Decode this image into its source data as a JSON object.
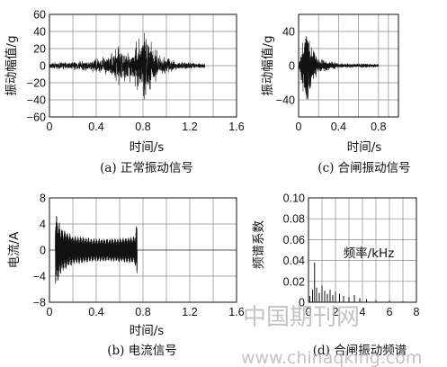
{
  "chart_data": [
    {
      "id": "a",
      "type": "line",
      "caption": "(a) 正常振动信号",
      "xlabel": "时间/s",
      "ylabel": "振动幅值/g",
      "xlim": [
        0,
        1.6
      ],
      "ylim": [
        -60,
        60
      ],
      "xticks": [
        0,
        0.4,
        0.8,
        1.2,
        1.6
      ],
      "xtick_labels": [
        "0",
        "0.4",
        "0.8",
        "1.2",
        "1.6"
      ],
      "yticks": [
        -60,
        -40,
        -20,
        0,
        20,
        40,
        60
      ],
      "ytick_labels": [
        "−60",
        "−40",
        "−20",
        "0",
        "20",
        "40",
        "60"
      ],
      "grid": true,
      "series": [
        {
          "signal": "vibration",
          "x_range": [
            0,
            1.33
          ],
          "envelope": [
            {
              "x": 0.0,
              "amp": 4
            },
            {
              "x": 0.3,
              "amp": 6
            },
            {
              "x": 0.5,
              "amp": 12
            },
            {
              "x": 0.6,
              "amp": 25
            },
            {
              "x": 0.7,
              "amp": 20
            },
            {
              "x": 0.8,
              "amp": 40
            },
            {
              "x": 0.82,
              "amp": 60
            },
            {
              "x": 0.86,
              "amp": 30
            },
            {
              "x": 0.95,
              "amp": 12
            },
            {
              "x": 1.1,
              "amp": 5
            },
            {
              "x": 1.33,
              "amp": 3
            }
          ]
        }
      ]
    },
    {
      "id": "c",
      "type": "line",
      "caption": "(c) 合闸振动信号",
      "xlabel": "时间/s",
      "ylabel": "振动幅值/g",
      "xlim": [
        0,
        1.0
      ],
      "ylim": [
        -60,
        60
      ],
      "xticks": [
        0,
        0.4,
        0.8
      ],
      "xtick_labels": [
        "0",
        "0.4",
        "0.8"
      ],
      "yticks": [
        -40,
        0,
        40
      ],
      "ytick_labels": [
        "−40",
        "0",
        "40"
      ],
      "grid": true,
      "series": [
        {
          "signal": "vibration",
          "x_range": [
            0,
            0.8
          ],
          "envelope": [
            {
              "x": 0.0,
              "amp": 2
            },
            {
              "x": 0.03,
              "amp": 20
            },
            {
              "x": 0.06,
              "amp": 45
            },
            {
              "x": 0.08,
              "amp": 60
            },
            {
              "x": 0.12,
              "amp": 25
            },
            {
              "x": 0.2,
              "amp": 8
            },
            {
              "x": 0.4,
              "amp": 3
            },
            {
              "x": 0.8,
              "amp": 2
            }
          ]
        }
      ]
    },
    {
      "id": "b",
      "type": "line",
      "caption": "(b) 电流信号",
      "xlabel": "时间/s",
      "ylabel": "电流/A",
      "xlim": [
        0,
        1.6
      ],
      "ylim": [
        -8,
        8
      ],
      "xticks": [
        0,
        0.4,
        0.8,
        1.2,
        1.6
      ],
      "xtick_labels": [
        "0",
        "0.4",
        "0.8",
        "1.2",
        "1.6"
      ],
      "yticks": [
        -8,
        -4,
        0,
        4,
        8
      ],
      "ytick_labels": [
        "−8",
        "−4",
        "0",
        "4",
        "8"
      ],
      "grid": true,
      "series": [
        {
          "signal": "current",
          "x_range": [
            0,
            1.6
          ],
          "active_range": [
            0.05,
            0.75
          ],
          "envelope": [
            {
              "x": 0.05,
              "amp": 6
            },
            {
              "x": 0.1,
              "amp": 3.5
            },
            {
              "x": 0.2,
              "amp": 2.3
            },
            {
              "x": 0.4,
              "amp": 1.8
            },
            {
              "x": 0.6,
              "amp": 1.9
            },
            {
              "x": 0.73,
              "amp": 2.2
            },
            {
              "x": 0.75,
              "amp": 4.5
            }
          ]
        }
      ]
    },
    {
      "id": "d",
      "type": "bar",
      "caption": "(d) 合闸振动频谱",
      "xlabel": "频率/kHz",
      "ylabel": "频谱系数",
      "xlim": [
        0,
        8
      ],
      "ylim": [
        0,
        0.1
      ],
      "xticks": [
        0,
        2,
        4,
        6,
        8
      ],
      "xtick_labels": [
        "0",
        "2",
        "4",
        "6",
        "8"
      ],
      "yticks": [
        0,
        0.02,
        0.04,
        0.06,
        0.08,
        0.1
      ],
      "ytick_labels": [
        "0",
        "0.02",
        "0.04",
        "0.06",
        "0.08",
        "0.10"
      ],
      "grid": true,
      "x": [
        0.1,
        0.3,
        0.45,
        0.6,
        0.8,
        1.0,
        1.2,
        1.4,
        1.6,
        1.8,
        2.0,
        2.3,
        2.6,
        3.0,
        3.4,
        3.8,
        4.3,
        5.0,
        6.0,
        7.0
      ],
      "values": [
        0.006,
        0.012,
        0.038,
        0.014,
        0.009,
        0.016,
        0.011,
        0.008,
        0.012,
        0.007,
        0.01,
        0.008,
        0.006,
        0.005,
        0.007,
        0.004,
        0.003,
        0.002,
        0.0015,
        0.001
      ]
    }
  ],
  "watermark": {
    "line1": "中国期刊网",
    "line2": "www.chinaqking.com"
  },
  "colors": {
    "axis": "#111111",
    "grid": "#8a8a8a",
    "signal": "#111111",
    "watermark": "#b9b9b9"
  }
}
